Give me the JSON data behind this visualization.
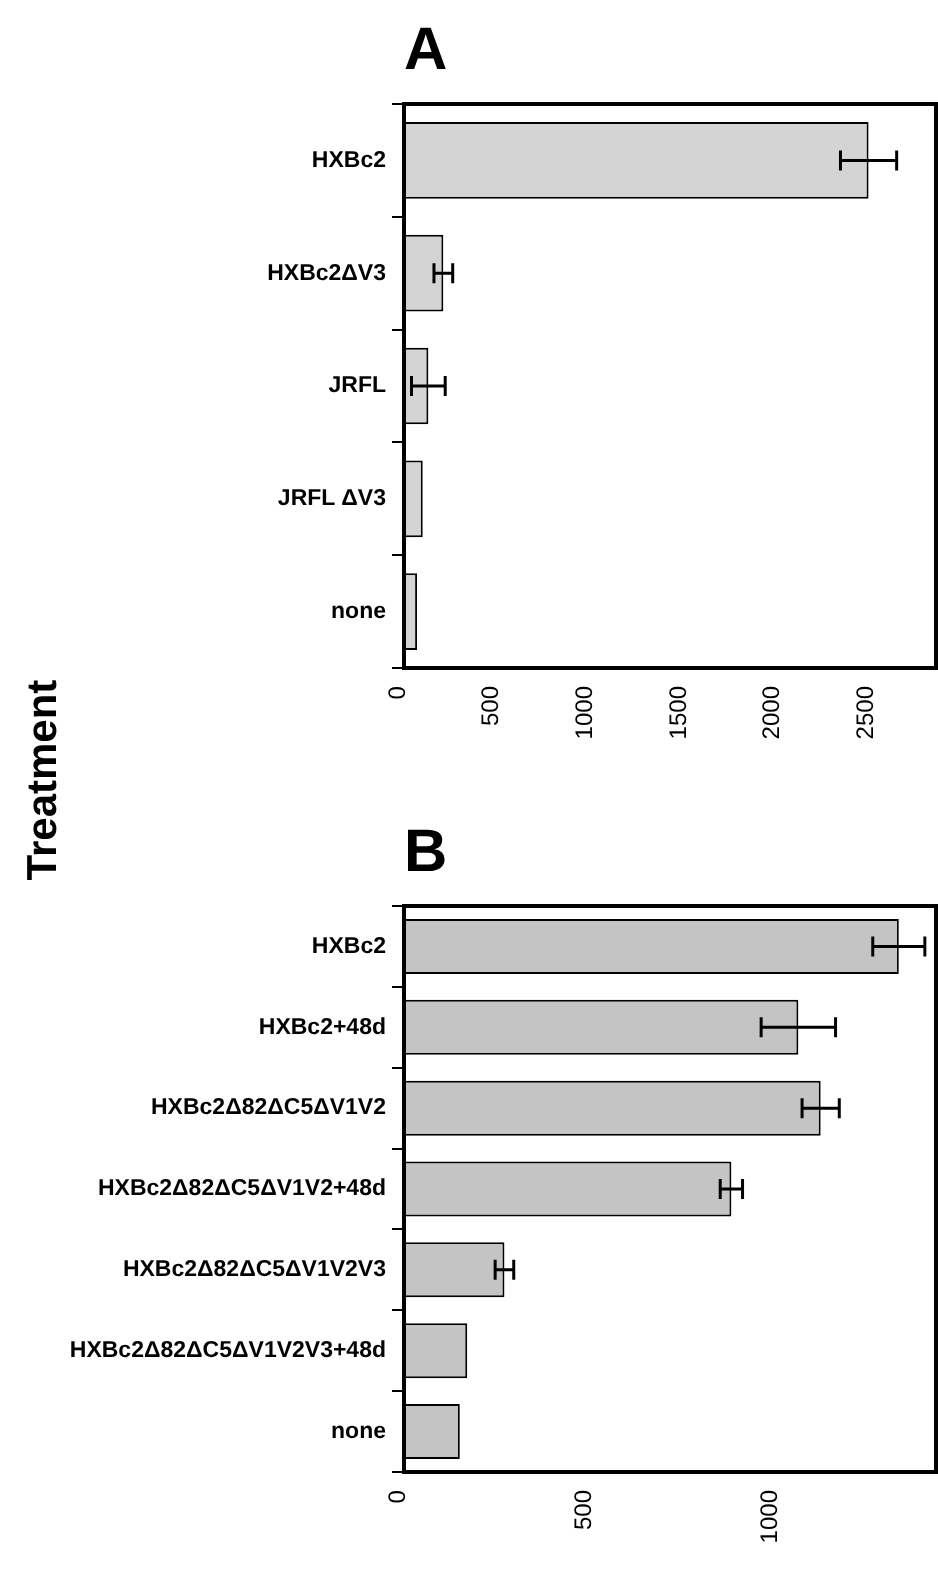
{
  "chart_data": [
    {
      "type": "bar",
      "orientation": "horizontal",
      "title": "A",
      "ylabel": "Treatment",
      "categories": [
        "HXBc2",
        "HXBc2ΔV3",
        "JRFL",
        "JRFL ΔV3",
        "none"
      ],
      "values": [
        2480,
        210,
        130,
        100,
        70
      ],
      "errors": [
        150,
        50,
        90,
        null,
        null
      ],
      "color": "#d4d4d4",
      "xlim": [
        0,
        2840
      ],
      "xticks": [
        0,
        500,
        1000,
        1500,
        2000,
        2500
      ]
    },
    {
      "type": "bar",
      "orientation": "horizontal",
      "title": "B",
      "categories": [
        "HXBc2",
        "HXBc2+48d",
        "HXBc2Δ82ΔC5ΔV1V2",
        "HXBc2Δ82ΔC5ΔV1V2+48d",
        "HXBc2Δ82ΔC5ΔV1V2V3",
        "HXBc2Δ82ΔC5ΔV1V2V3+48d",
        "none"
      ],
      "values": [
        1330,
        1060,
        1120,
        880,
        270,
        170,
        150
      ],
      "errors": [
        70,
        100,
        50,
        30,
        25,
        null,
        null
      ],
      "color": "#c4c4c4",
      "xlim": [
        0,
        1430
      ],
      "xticks": [
        0,
        500,
        1000
      ]
    }
  ]
}
